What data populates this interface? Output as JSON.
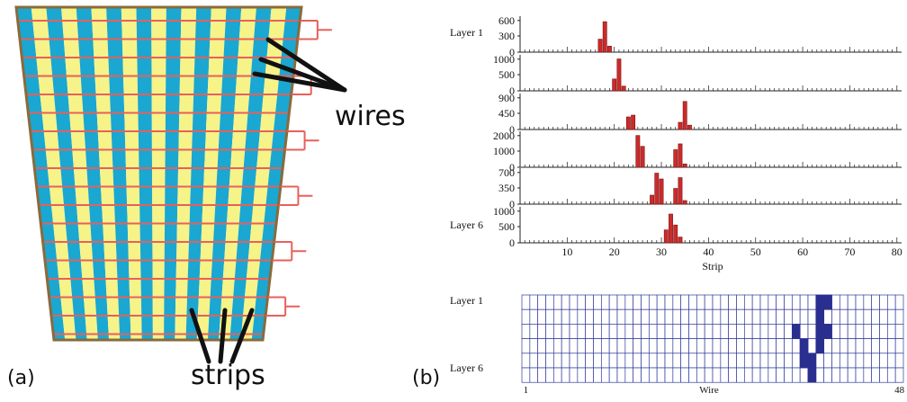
{
  "panel_a": {
    "tag": "(a)",
    "wires_label": "wires",
    "strips_label": "strips",
    "colors": {
      "strip_blue": "#1aa7d1",
      "strip_yellow": "#f6f389",
      "wire_red": "#e8605a",
      "frame_brown": "#8a6a3c"
    }
  },
  "panel_b": {
    "tag": "(b)",
    "strip_plot": {
      "xlabel": "Strip",
      "x_ticks": [
        "10",
        "20",
        "30",
        "40",
        "50",
        "60",
        "70",
        "80"
      ],
      "layer_labels": [
        "Layer 1",
        "",
        "",
        "",
        "",
        "Layer 6"
      ],
      "bar_color": "#cc2b2b",
      "layers": [
        {
          "y_ticks": [
            "600",
            "300",
            "0"
          ],
          "ymax": 720,
          "hits": [
            [
              17,
              260
            ],
            [
              18,
              610
            ],
            [
              19,
              120
            ]
          ]
        },
        {
          "y_ticks": [
            "1000",
            "500",
            "0"
          ],
          "ymax": 1150,
          "hits": [
            [
              20,
              380
            ],
            [
              21,
              1020
            ],
            [
              22,
              150
            ]
          ]
        },
        {
          "y_ticks": [
            "900",
            "450",
            "0"
          ],
          "ymax": 1000,
          "hits": [
            [
              23,
              350
            ],
            [
              24,
              400
            ],
            [
              34,
              200
            ],
            [
              35,
              780
            ],
            [
              36,
              120
            ]
          ]
        },
        {
          "y_ticks": [
            "2000",
            "1000",
            "0"
          ],
          "ymax": 2150,
          "hits": [
            [
              25,
              1900
            ],
            [
              26,
              1250
            ],
            [
              33,
              1050
            ],
            [
              34,
              1400
            ],
            [
              35,
              200
            ]
          ]
        },
        {
          "y_ticks": [
            "700",
            "350",
            "0"
          ],
          "ymax": 800,
          "hits": [
            [
              28,
              200
            ],
            [
              29,
              690
            ],
            [
              30,
              560
            ],
            [
              33,
              350
            ],
            [
              34,
              590
            ],
            [
              35,
              80
            ]
          ]
        },
        {
          "y_ticks": [
            "1000",
            "500",
            "0"
          ],
          "ymax": 1250,
          "hits": [
            [
              31,
              450
            ],
            [
              32,
              1000
            ],
            [
              33,
              620
            ],
            [
              34,
              200
            ]
          ]
        }
      ]
    },
    "wire_plot": {
      "xlabel": "Wire",
      "x_start_label": "1",
      "x_end_label": "48",
      "layer_labels": [
        "Layer 1",
        "",
        "",
        "",
        "",
        "Layer 6"
      ],
      "n_wires": 48,
      "cell_color": "#2a2f8f",
      "grid_color": "#2f3a9a",
      "hits": [
        [
          0,
          37
        ],
        [
          0,
          38
        ],
        [
          1,
          37
        ],
        [
          2,
          34
        ],
        [
          2,
          37
        ],
        [
          2,
          38
        ],
        [
          3,
          35
        ],
        [
          3,
          37
        ],
        [
          4,
          35
        ],
        [
          4,
          36
        ],
        [
          5,
          36
        ]
      ]
    }
  }
}
